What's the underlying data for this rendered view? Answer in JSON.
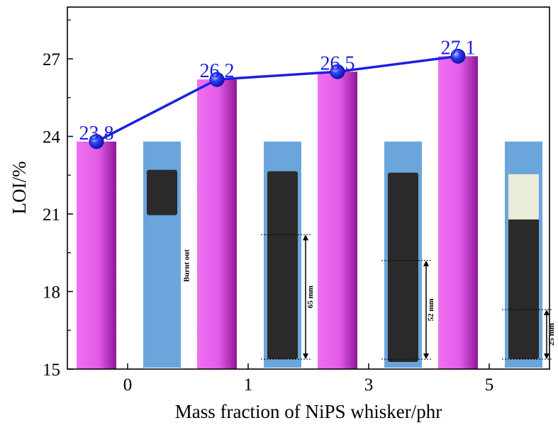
{
  "chart_data": {
    "type": "bar",
    "categories": [
      "0",
      "1",
      "3",
      "5"
    ],
    "values": [
      23.8,
      26.2,
      26.5,
      27.1
    ],
    "data_labels": [
      "23.8",
      "26.2",
      "26.5",
      "27.1"
    ],
    "line_overlay": true,
    "xlabel": "Mass fraction of NiPS whisker/phr",
    "ylabel": "LOI/%",
    "ylim": [
      15,
      29
    ],
    "yticks": [
      15,
      18,
      21,
      24,
      27
    ],
    "grid": false,
    "photo_annotations": [
      "Burnt out",
      "65 mm",
      "52 mm",
      "25 mm"
    ],
    "colors": {
      "bar": "#f070f0",
      "bar_dark": "#9a1aa0",
      "line": "#1a20e0",
      "photo_bg": "#6aa6dc",
      "specimen": "#2a2a2a"
    }
  }
}
